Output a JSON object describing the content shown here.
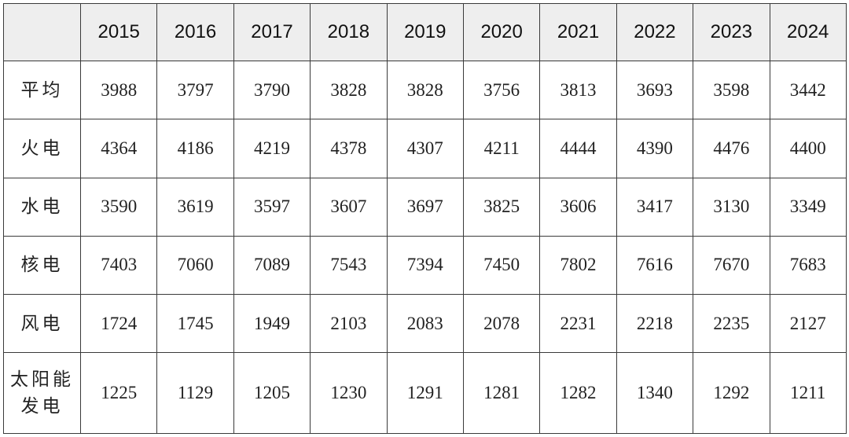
{
  "table": {
    "corner_label": "",
    "years": [
      "2015",
      "2016",
      "2017",
      "2018",
      "2019",
      "2020",
      "2021",
      "2022",
      "2023",
      "2024"
    ],
    "rows": [
      {
        "label": "平均",
        "values": [
          "3988",
          "3797",
          "3790",
          "3828",
          "3828",
          "3756",
          "3813",
          "3693",
          "3598",
          "3442"
        ]
      },
      {
        "label": "火电",
        "values": [
          "4364",
          "4186",
          "4219",
          "4378",
          "4307",
          "4211",
          "4444",
          "4390",
          "4476",
          "4400"
        ]
      },
      {
        "label": "水电",
        "values": [
          "3590",
          "3619",
          "3597",
          "3607",
          "3697",
          "3825",
          "3606",
          "3417",
          "3130",
          "3349"
        ]
      },
      {
        "label": "核电",
        "values": [
          "7403",
          "7060",
          "7089",
          "7543",
          "7394",
          "7450",
          "7802",
          "7616",
          "7670",
          "7683"
        ]
      },
      {
        "label": "风电",
        "values": [
          "1724",
          "1745",
          "1949",
          "2103",
          "2083",
          "2078",
          "2231",
          "2218",
          "2235",
          "2127"
        ]
      },
      {
        "label": "太阳能发电",
        "label_lines": [
          "太阳能",
          "发电"
        ],
        "values": [
          "1225",
          "1129",
          "1205",
          "1230",
          "1291",
          "1281",
          "1282",
          "1340",
          "1292",
          "1211"
        ]
      }
    ]
  },
  "colors": {
    "header_bg": "#eeeeee",
    "border": "#3a3a3a",
    "text": "#222222"
  }
}
